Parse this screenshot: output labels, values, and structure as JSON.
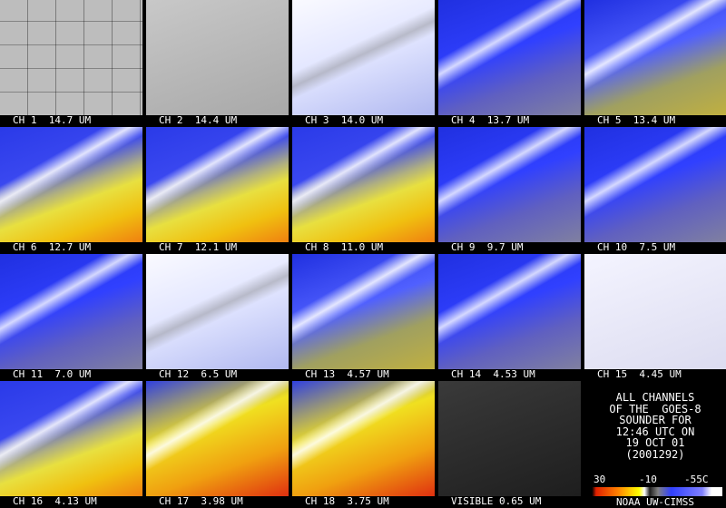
{
  "panels": [
    {
      "label": "CH 1  14.7 UM"
    },
    {
      "label": "CH 2  14.4 UM"
    },
    {
      "label": "CH 3  14.0 UM"
    },
    {
      "label": "CH 4  13.7 UM"
    },
    {
      "label": "CH 5  13.4 UM"
    },
    {
      "label": "CH 6  12.7 UM"
    },
    {
      "label": "CH 7  12.1 UM"
    },
    {
      "label": "CH 8  11.0 UM"
    },
    {
      "label": "CH 9  9.7 UM"
    },
    {
      "label": "CH 10  7.5 UM"
    },
    {
      "label": "CH 11  7.0 UM"
    },
    {
      "label": "CH 12  6.5 UM"
    },
    {
      "label": "CH 13  4.57 UM"
    },
    {
      "label": "CH 14  4.53 UM"
    },
    {
      "label": "CH 15  4.45 UM"
    },
    {
      "label": "CH 16  4.13 UM"
    },
    {
      "label": "CH 17  3.98 UM"
    },
    {
      "label": "CH 18  3.75 UM"
    },
    {
      "label": "VISIBLE 0.65 UM"
    }
  ],
  "info": {
    "lines": [
      "ALL CHANNELS",
      "OF THE  GOES-8",
      "SOUNDER FOR",
      "12:46 UTC ON",
      "19 OCT 01",
      "(2001292)"
    ],
    "scale_labels": [
      "30",
      "-10",
      "-55C"
    ],
    "credit": "NOAA UW-CIMSS"
  }
}
